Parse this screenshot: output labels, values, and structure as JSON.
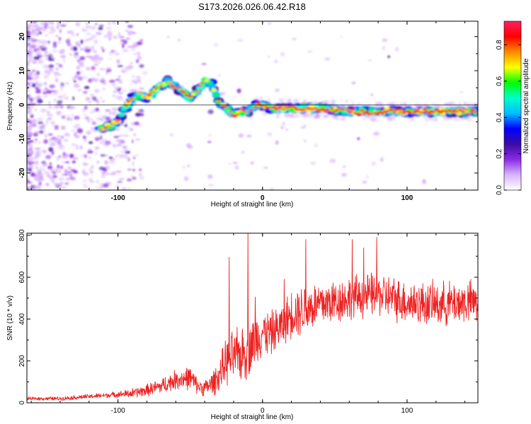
{
  "title": "S173.2026.026.06.42.R18",
  "chart_data": [
    {
      "type": "heatmap",
      "name": "spectrogram",
      "xlabel": "Height of straight line (km)",
      "ylabel": "Frequency (Hz)",
      "xlim": [
        -163,
        149
      ],
      "ylim": [
        -25,
        24.5
      ],
      "xticks": [
        -100,
        0,
        100
      ],
      "xtick_labels": [
        "-100",
        "0",
        "100"
      ],
      "yticks": [
        -20,
        -10,
        0,
        10,
        20
      ],
      "ytick_labels": [
        "-20",
        "-10",
        "0",
        "10",
        "20"
      ],
      "ridge": {
        "x": [
          -110,
          -100,
          -95,
          -90,
          -85,
          -80,
          -75,
          -70,
          -65,
          -60,
          -55,
          -50,
          -45,
          -40,
          -35,
          -30,
          -25,
          -20,
          -15,
          -10,
          -5,
          0,
          5,
          10,
          20,
          40,
          60,
          80,
          100,
          120,
          140,
          148
        ],
        "freq": [
          -7,
          -5,
          -1,
          2,
          3,
          2,
          4,
          6,
          7,
          5,
          4,
          2,
          4,
          7,
          6,
          1,
          -1,
          -3,
          -2,
          -2,
          0,
          0,
          -1,
          -1,
          -1,
          -1,
          -2,
          -2,
          -2,
          -2,
          -2,
          -2
        ]
      },
      "colorbar": {
        "label": "Normalized spectral amplitude",
        "range": [
          0.0,
          0.93
        ],
        "ticks": [
          0.0,
          0.2,
          0.4,
          0.6,
          0.8
        ],
        "tick_labels": [
          "0.0",
          "0.2",
          "0.4",
          "0.6",
          "0.8"
        ],
        "colormap": [
          "#ffffff",
          "#d9b3ff",
          "#8a2be2",
          "#3a0ca3",
          "#0000ff",
          "#00bfff",
          "#00ffcc",
          "#00ff00",
          "#ffff00",
          "#ff8800",
          "#ff0000",
          "#ff2060"
        ]
      }
    },
    {
      "type": "line",
      "name": "snr",
      "xlabel": "Height of straight line (km)",
      "ylabel": "SNR (10 * v/v)",
      "xlim": [
        -163,
        149
      ],
      "ylim": [
        0,
        810
      ],
      "xticks": [
        -100,
        0,
        100
      ],
      "xtick_labels": [
        "-100",
        "0",
        "100"
      ],
      "yticks": [
        0,
        200,
        400,
        600,
        800
      ],
      "ytick_labels": [
        "0",
        "200",
        "400",
        "600",
        "800"
      ],
      "color": "#ee2222",
      "envelope": {
        "x": [
          -163,
          -140,
          -120,
          -100,
          -90,
          -80,
          -70,
          -60,
          -50,
          -45,
          -40,
          -35,
          -30,
          -25,
          -20,
          -15,
          -10,
          -5,
          0,
          5,
          10,
          15,
          20,
          25,
          30,
          40,
          60,
          80,
          100,
          120,
          140,
          149
        ],
        "mean": [
          20,
          20,
          30,
          40,
          45,
          60,
          80,
          110,
          120,
          80,
          70,
          90,
          130,
          200,
          220,
          230,
          260,
          300,
          340,
          330,
          350,
          380,
          430,
          440,
          450,
          470,
          500,
          520,
          480,
          470,
          480,
          480
        ],
        "amp": [
          8,
          10,
          12,
          15,
          25,
          30,
          40,
          50,
          60,
          40,
          40,
          60,
          80,
          120,
          130,
          140,
          150,
          130,
          120,
          110,
          110,
          110,
          120,
          130,
          130,
          120,
          110,
          110,
          110,
          110,
          110,
          110
        ]
      },
      "spikes": [
        {
          "x": -23,
          "y": 695
        },
        {
          "x": -10,
          "y": 810
        },
        {
          "x": -5,
          "y": 505
        },
        {
          "x": 15,
          "y": 590
        },
        {
          "x": 30,
          "y": 780
        },
        {
          "x": 62,
          "y": 780
        },
        {
          "x": 70,
          "y": 740
        },
        {
          "x": 79,
          "y": 790
        }
      ]
    }
  ]
}
